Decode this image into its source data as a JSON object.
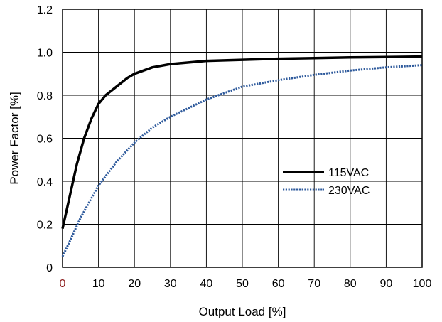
{
  "chart_data": {
    "type": "line",
    "xlabel": "Output Load [%]",
    "ylabel": "Power Factor [%]",
    "xlim": [
      0,
      100
    ],
    "ylim": [
      0,
      1.2
    ],
    "x_ticks": [
      "0",
      "10",
      "20",
      "30",
      "40",
      "50",
      "60",
      "70",
      "80",
      "90",
      "100"
    ],
    "y_ticks": [
      "0",
      "0.2",
      "0.4",
      "0.6",
      "0.8",
      "1.0",
      "1.2"
    ],
    "grid": true,
    "legend_position": "center-right",
    "series": [
      {
        "name": "115VAC",
        "style": "solid",
        "color": "#000000",
        "x": [
          0,
          2,
          4,
          6,
          8,
          10,
          12,
          15,
          18,
          20,
          25,
          30,
          40,
          50,
          60,
          70,
          80,
          90,
          100
        ],
        "y": [
          0.18,
          0.33,
          0.48,
          0.6,
          0.69,
          0.76,
          0.8,
          0.84,
          0.88,
          0.9,
          0.93,
          0.945,
          0.96,
          0.965,
          0.97,
          0.973,
          0.976,
          0.978,
          0.98
        ]
      },
      {
        "name": "230VAC",
        "style": "dotted",
        "color": "#2e5a9c",
        "x": [
          0,
          2,
          5,
          8,
          10,
          15,
          20,
          25,
          30,
          40,
          50,
          60,
          70,
          80,
          90,
          100
        ],
        "y": [
          0.05,
          0.12,
          0.23,
          0.32,
          0.38,
          0.49,
          0.58,
          0.65,
          0.7,
          0.78,
          0.84,
          0.87,
          0.895,
          0.915,
          0.93,
          0.94
        ]
      }
    ]
  }
}
